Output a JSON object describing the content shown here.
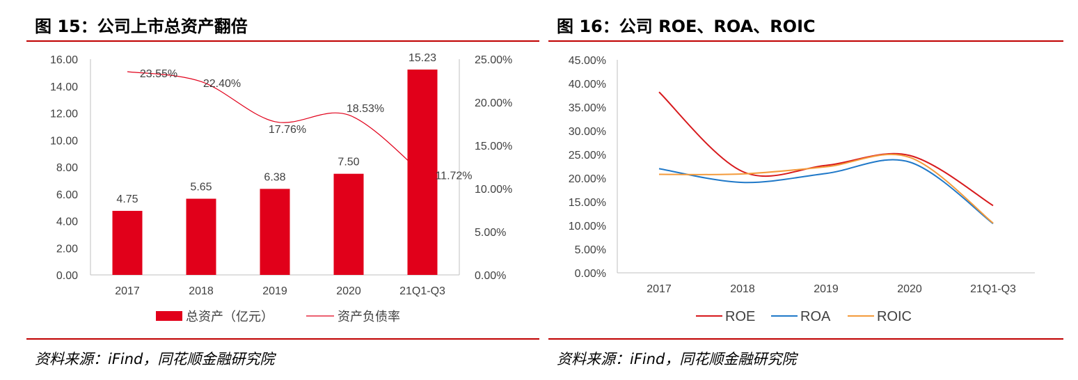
{
  "figures": [
    {
      "title": "图 15：公司上市总资产翻倍",
      "source": "资料来源：iFind，同花顺金融研究院",
      "chart_data": {
        "type": "bar",
        "categories": [
          "2017",
          "2018",
          "2019",
          "2020",
          "21Q1-Q3"
        ],
        "series": [
          {
            "name": "总资产（亿元）",
            "type": "bar",
            "axis": "left",
            "values": [
              4.75,
              5.65,
              6.38,
              7.5,
              15.23
            ],
            "labels": [
              "4.75",
              "5.65",
              "6.38",
              "7.50",
              "15.23"
            ],
            "color": "#e1001a"
          },
          {
            "name": "资产负债率",
            "type": "line",
            "axis": "right",
            "values": [
              23.55,
              22.4,
              17.76,
              18.53,
              11.72
            ],
            "labels": [
              "23.55%",
              "22.40%",
              "17.76%",
              "18.53%",
              "11.72%"
            ],
            "color": "#e1001a"
          }
        ],
        "y_left": {
          "min": 0,
          "max": 16,
          "step": 2,
          "ticks": [
            "0.00",
            "2.00",
            "4.00",
            "6.00",
            "8.00",
            "10.00",
            "12.00",
            "14.00",
            "16.00"
          ]
        },
        "y_right": {
          "min": 0,
          "max": 25,
          "step": 5,
          "ticks": [
            "0.00%",
            "5.00%",
            "10.00%",
            "15.00%",
            "20.00%",
            "25.00%"
          ]
        },
        "grid": false,
        "legend": "bottom"
      }
    },
    {
      "title": "图 16：公司 ROE、ROA、ROIC",
      "source": "资料来源：iFind，同花顺金融研究院",
      "chart_data": {
        "type": "line",
        "categories": [
          "2017",
          "2018",
          "2019",
          "2020",
          "21Q1-Q3"
        ],
        "series": [
          {
            "name": "ROE",
            "values": [
              38.2,
              21.4,
              22.7,
              24.8,
              14.2
            ],
            "color": "#d7191c"
          },
          {
            "name": "ROA",
            "values": [
              22.0,
              19.1,
              21.0,
              23.4,
              10.4
            ],
            "color": "#1f78c8"
          },
          {
            "name": "ROIC",
            "values": [
              20.8,
              20.9,
              22.4,
              24.4,
              10.5
            ],
            "color": "#f39a3b"
          }
        ],
        "y": {
          "min": 0,
          "max": 45,
          "step": 5,
          "ticks": [
            "0.00%",
            "5.00%",
            "10.00%",
            "15.00%",
            "20.00%",
            "25.00%",
            "30.00%",
            "35.00%",
            "40.00%",
            "45.00%"
          ]
        },
        "grid": false,
        "legend": "bottom"
      }
    }
  ]
}
